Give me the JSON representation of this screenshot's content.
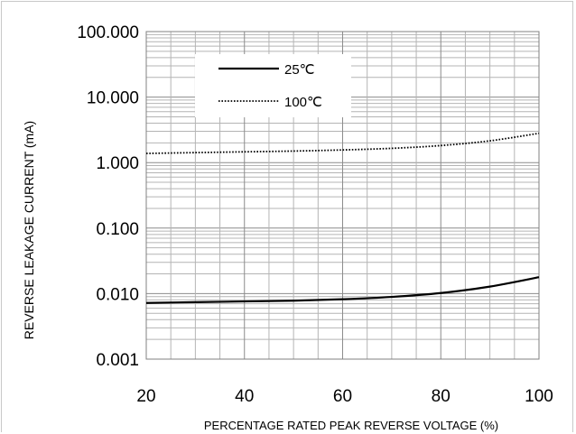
{
  "chart_data": {
    "type": "line",
    "title": "",
    "xlabel": "PERCENTAGE RATED PEAK REVERSE VOLTAGE (%)",
    "ylabel": "REVERSE LEAKAGE CURRENT (mA)",
    "xlim": [
      20,
      100
    ],
    "ylim": [
      0.001,
      100
    ],
    "yscale": "log",
    "xticks": [
      "20",
      "40",
      "60",
      "80",
      "100"
    ],
    "yticks": [
      "100.000",
      "10.000",
      "1.000",
      "0.100",
      "0.010",
      "0.001"
    ],
    "grid": true,
    "legend": "top-left inside",
    "series": [
      {
        "name": "25℃",
        "style": "solid",
        "color": "#000000",
        "x": [
          20,
          30,
          40,
          50,
          60,
          70,
          80,
          90,
          100
        ],
        "y": [
          0.0072,
          0.0074,
          0.0076,
          0.0078,
          0.0082,
          0.0089,
          0.0102,
          0.0128,
          0.0178
        ]
      },
      {
        "name": "100℃",
        "style": "dotted",
        "color": "#000000",
        "x": [
          20,
          30,
          40,
          50,
          60,
          70,
          80,
          90,
          100
        ],
        "y": [
          1.38,
          1.42,
          1.46,
          1.5,
          1.56,
          1.65,
          1.82,
          2.15,
          2.8
        ]
      }
    ]
  }
}
